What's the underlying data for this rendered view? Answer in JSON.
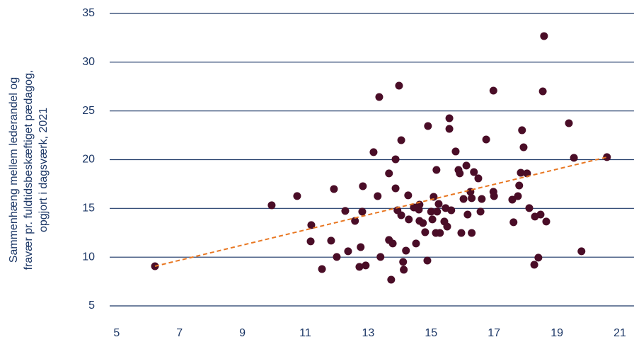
{
  "chart_data": {
    "type": "scatter",
    "y_label_lines": [
      "Sammenhæng mellem lederandel og",
      "fravær pr. fuldtidsbeskæftiget pædagog,",
      "opgjort i dagsværk, 2021"
    ],
    "xlim": [
      4.78,
      21.45
    ],
    "ylim": [
      5,
      35
    ],
    "xticks": [
      5,
      7,
      9,
      11,
      13,
      15,
      17,
      19,
      21
    ],
    "yticks": [
      5,
      10,
      15,
      20,
      25,
      30,
      35
    ],
    "grid": true,
    "color": "#4a0d27",
    "series": [
      {
        "color": "#4a0d27",
        "x": [
          6.22,
          9.93,
          10.74,
          11.19,
          11.17,
          11.53,
          11.82,
          11.91,
          12.0,
          12.27,
          12.36,
          12.58,
          12.72,
          12.76,
          12.81,
          12.83,
          12.92,
          13.17,
          13.3,
          13.35,
          13.39,
          13.66,
          13.66,
          13.73,
          13.78,
          13.87,
          13.87,
          13.93,
          13.98,
          14.05,
          14.05,
          14.11,
          14.13,
          14.2,
          14.27,
          14.29,
          14.45,
          14.52,
          14.61,
          14.63,
          14.63,
          14.74,
          14.81,
          14.88,
          14.9,
          15.0,
          15.04,
          15.08,
          15.15,
          15.17,
          15.19,
          15.24,
          15.28,
          15.42,
          15.46,
          15.51,
          15.58,
          15.58,
          15.64,
          15.78,
          15.87,
          15.91,
          15.96,
          16.03,
          16.12,
          16.16,
          16.25,
          16.29,
          16.29,
          16.36,
          16.5,
          16.57,
          16.61,
          16.75,
          16.98,
          17.0,
          16.98,
          17.58,
          17.62,
          17.76,
          17.8,
          17.85,
          17.89,
          17.94,
          18.05,
          18.12,
          18.28,
          18.3,
          18.41,
          18.48,
          18.55,
          18.59,
          18.66,
          19.38,
          19.54,
          19.78,
          20.59
        ],
        "y": [
          9.07,
          15.32,
          16.27,
          13.29,
          11.62,
          8.78,
          11.69,
          16.99,
          10.02,
          14.74,
          10.6,
          13.72,
          9.0,
          11.03,
          14.67,
          17.28,
          9.15,
          20.77,
          16.26,
          26.43,
          10.02,
          18.59,
          11.76,
          7.69,
          11.4,
          20.04,
          17.06,
          14.81,
          27.59,
          22.0,
          14.3,
          9.51,
          8.71,
          10.67,
          16.34,
          13.87,
          15.1,
          11.4,
          14.88,
          15.39,
          13.72,
          13.5,
          12.56,
          9.65,
          23.45,
          14.67,
          13.87,
          16.19,
          12.48,
          18.95,
          14.67,
          15.46,
          12.48,
          13.65,
          15.03,
          13.14,
          23.16,
          24.25,
          14.81,
          20.84,
          18.95,
          18.59,
          12.48,
          15.97,
          19.39,
          14.37,
          16.7,
          16.05,
          12.48,
          18.73,
          18.08,
          14.67,
          15.97,
          22.07,
          16.7,
          16.26,
          27.08,
          15.9,
          13.58,
          16.26,
          17.35,
          18.66,
          23.02,
          21.27,
          18.59,
          15.03,
          9.22,
          14.16,
          9.95,
          14.37,
          27.01,
          32.68,
          13.65,
          23.74,
          20.19,
          10.6,
          20.26
        ]
      }
    ],
    "trendline": {
      "color": "#e87722",
      "x": [
        6.22,
        20.59
      ],
      "y": [
        9.07,
        20.26
      ]
    }
  }
}
